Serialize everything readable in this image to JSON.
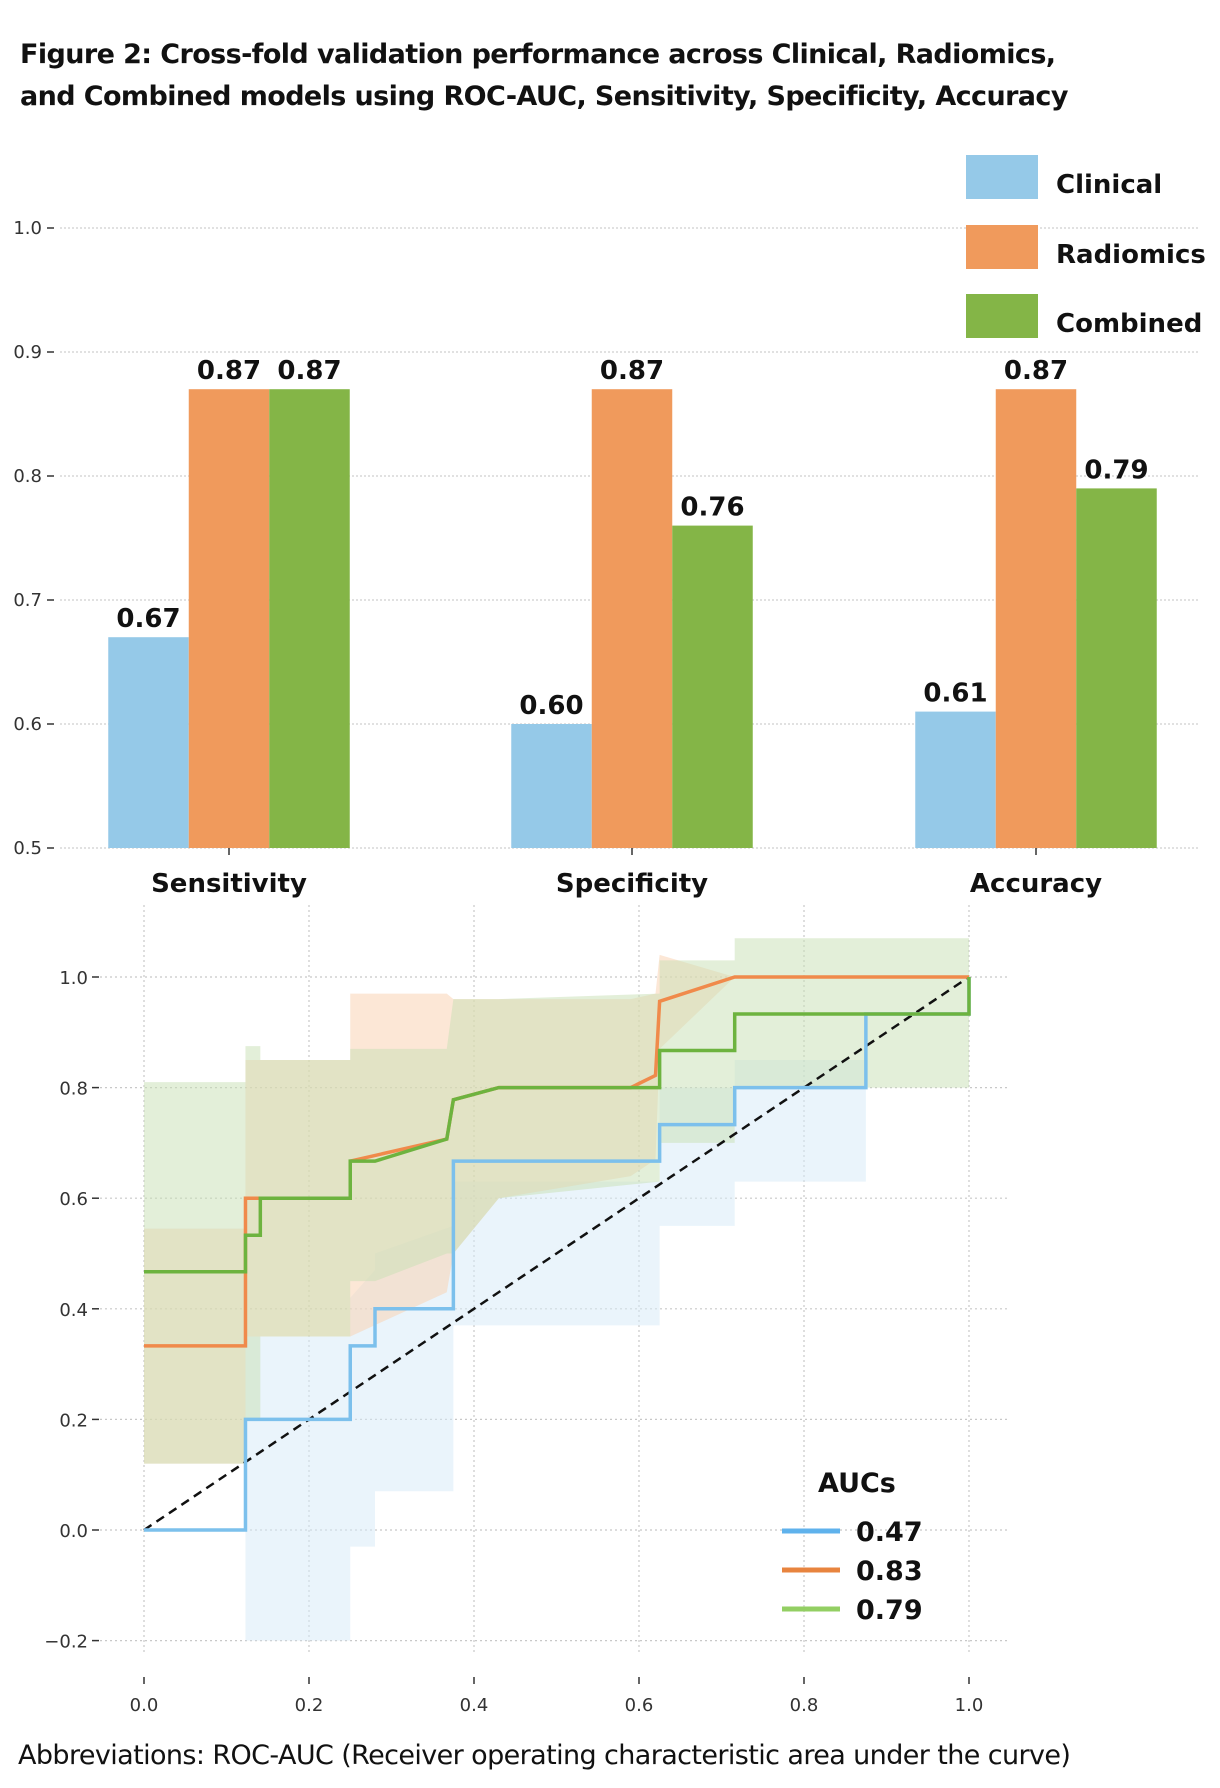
{
  "figure": {
    "title_line1": "Figure 2: Cross-fold validation performance across Clinical, Radiomics,",
    "title_line2": "and Combined models using ROC-AUC, Sensitivity, Specificity, Accuracy",
    "footnote": "Abbreviations: ROC-AUC (Receiver operating characteristic area under the curve)"
  },
  "chart_data": [
    {
      "type": "bar",
      "title": "",
      "xlabel": "",
      "ylabel": "",
      "categories": [
        "Sensitivity",
        "Specificity",
        "Accuracy"
      ],
      "series": [
        {
          "name": "Clinical",
          "color": "#95c9e8",
          "values": [
            0.67,
            0.6,
            0.61
          ],
          "labels": [
            "0.67",
            "0.60",
            "0.61"
          ]
        },
        {
          "name": "Radiomics",
          "color": "#f09a5c",
          "values": [
            0.87,
            0.87,
            0.87
          ],
          "labels": [
            "0.87",
            "0.87",
            "0.87"
          ]
        },
        {
          "name": "Combined",
          "color": "#84b547",
          "values": [
            0.87,
            0.76,
            0.79
          ],
          "labels": [
            "0.87",
            "0.76",
            "0.79"
          ]
        }
      ],
      "ylim": [
        0.5,
        1.0
      ],
      "yticks": [
        "0.5",
        "0.6",
        "0.7",
        "0.8",
        "0.9",
        "1.0"
      ],
      "grid": "horizontal dotted",
      "legend": {
        "placement": "top-right",
        "entries": [
          "Clinical",
          "Radiomics",
          "Combined"
        ]
      }
    },
    {
      "type": "line",
      "title": "",
      "xlabel": "",
      "ylabel": "",
      "xlim": [
        0.0,
        1.0
      ],
      "ylim": [
        -0.2,
        1.05
      ],
      "xticks": [
        "0.0",
        "0.2",
        "0.4",
        "0.6",
        "0.8",
        "1.0"
      ],
      "yticks": [
        "−0.2",
        "0.0",
        "0.2",
        "0.4",
        "0.6",
        "0.8",
        "1.0"
      ],
      "grid": "dotted both",
      "legend": {
        "placement": "bottom-right",
        "title": "AUCs",
        "entries": [
          "0.47",
          "0.83",
          "0.79"
        ]
      },
      "diagonal": {
        "style": "dashed",
        "color": "#111111",
        "from": [
          0,
          0
        ],
        "to": [
          1,
          1
        ]
      },
      "series": [
        {
          "name": "Clinical",
          "auc": "0.47",
          "color": "#7cc0ec",
          "band_color": "#d6eaf8",
          "x": [
            0.0,
            0.123,
            0.123,
            0.25,
            0.25,
            0.28,
            0.28,
            0.375,
            0.375,
            0.625,
            0.625,
            0.716,
            0.716,
            0.875,
            0.875,
            1.0,
            1.0
          ],
          "y": [
            0.0,
            0.0,
            0.2,
            0.2,
            0.333,
            0.333,
            0.4,
            0.4,
            0.667,
            0.667,
            0.733,
            0.733,
            0.8,
            0.8,
            0.933,
            0.933,
            1.0
          ],
          "band_upper": [
            0.0,
            0.0,
            0.35,
            0.35,
            0.42,
            0.47,
            0.5,
            0.55,
            0.63,
            0.63,
            0.8,
            0.8,
            0.85,
            0.85,
            0.93,
            0.93,
            1.0
          ],
          "band_lower": [
            0.0,
            0.0,
            -0.2,
            -0.2,
            -0.03,
            -0.03,
            0.07,
            0.07,
            0.37,
            0.37,
            0.55,
            0.55,
            0.63,
            0.63,
            0.93,
            0.93,
            1.0
          ]
        },
        {
          "name": "Radiomics",
          "auc": "0.83",
          "color": "#f08a4b",
          "band_color": "#f9cfae",
          "x": [
            0.0,
            0.123,
            0.123,
            0.25,
            0.25,
            0.367,
            0.375,
            0.43,
            0.59,
            0.62,
            0.625,
            0.716,
            1.0
          ],
          "y": [
            0.333,
            0.333,
            0.6,
            0.6,
            0.667,
            0.707,
            0.778,
            0.8,
            0.8,
            0.822,
            0.956,
            1.0,
            1.0
          ],
          "band_upper": [
            0.545,
            0.545,
            0.85,
            0.85,
            0.97,
            0.97,
            0.96,
            0.96,
            0.96,
            0.97,
            1.04,
            1.0,
            1.0
          ],
          "band_lower": [
            0.12,
            0.12,
            0.35,
            0.35,
            0.35,
            0.43,
            0.5,
            0.6,
            0.64,
            0.67,
            0.87,
            1.0,
            1.0
          ]
        },
        {
          "name": "Combined",
          "auc": "0.79",
          "color": "#6db33f",
          "band_color": "#c8e0b4",
          "x": [
            0.0,
            0.123,
            0.123,
            0.141,
            0.141,
            0.25,
            0.25,
            0.28,
            0.367,
            0.375,
            0.43,
            0.625,
            0.625,
            0.716,
            0.716,
            1.0,
            1.0
          ],
          "y": [
            0.467,
            0.467,
            0.533,
            0.533,
            0.6,
            0.6,
            0.667,
            0.667,
            0.707,
            0.778,
            0.8,
            0.8,
            0.867,
            0.867,
            0.933,
            0.933,
            1.0
          ],
          "band_upper": [
            0.81,
            0.81,
            0.875,
            0.875,
            0.85,
            0.85,
            0.87,
            0.87,
            0.87,
            0.96,
            0.96,
            0.97,
            1.03,
            1.03,
            1.07,
            1.07,
            1.07
          ],
          "band_lower": [
            0.12,
            0.12,
            0.2,
            0.2,
            0.35,
            0.35,
            0.45,
            0.45,
            0.5,
            0.5,
            0.6,
            0.63,
            0.7,
            0.7,
            0.8,
            0.8,
            0.8
          ]
        }
      ]
    }
  ]
}
